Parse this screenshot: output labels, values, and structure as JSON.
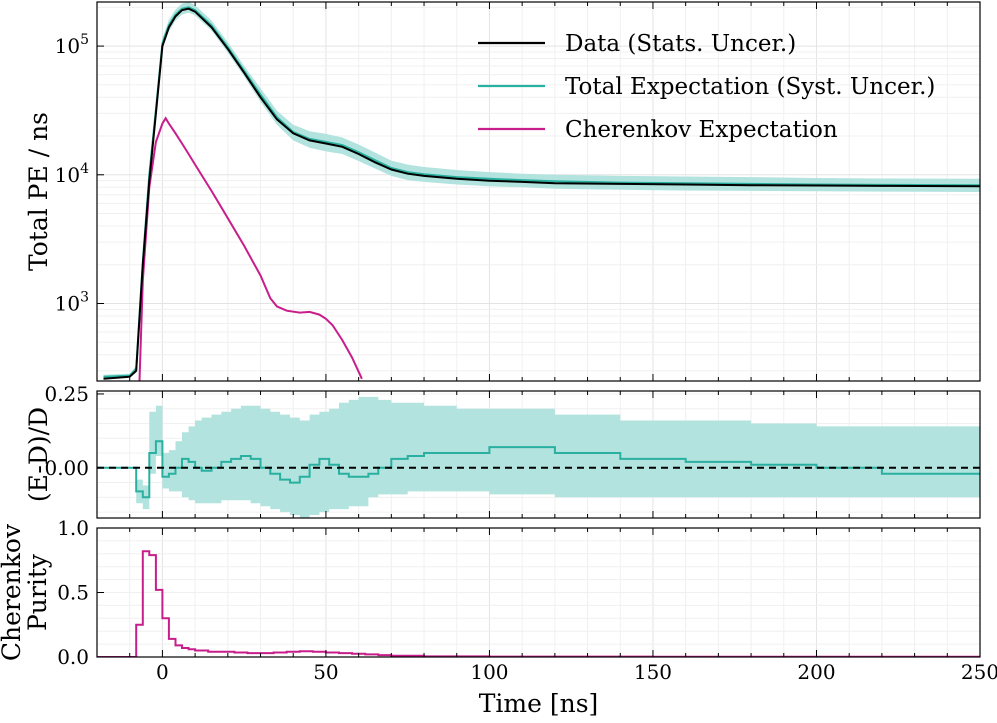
{
  "chart_data": [
    {
      "panel": "top",
      "type": "line",
      "yscale": "log",
      "xlim": [
        -20,
        250
      ],
      "ylim": [
        250,
        220000
      ],
      "ylabel": "Total PE / ns",
      "yticks": [
        {
          "value": 1000,
          "label": "10^3"
        },
        {
          "value": 10000,
          "label": "10^4"
        },
        {
          "value": 100000,
          "label": "10^5"
        }
      ],
      "series": [
        {
          "name": "Data (Stats. Uncer.)",
          "color": "#000000",
          "x": [
            -18,
            -10,
            -8,
            -6,
            -4,
            -2,
            0,
            2,
            4,
            6,
            8,
            10,
            15,
            20,
            25,
            30,
            35,
            40,
            45,
            50,
            55,
            60,
            65,
            70,
            75,
            80,
            90,
            100,
            110,
            120,
            140,
            160,
            180,
            200,
            220,
            250
          ],
          "y": [
            260,
            270,
            300,
            2000,
            9000,
            30000,
            100000,
            140000,
            170000,
            190000,
            195000,
            185000,
            140000,
            95000,
            62000,
            40000,
            27000,
            21000,
            18500,
            17500,
            16500,
            14500,
            12500,
            11000,
            10200,
            9800,
            9300,
            9000,
            8800,
            8600,
            8500,
            8400,
            8300,
            8250,
            8200,
            8150
          ]
        },
        {
          "name": "Total Expectation (Syst. Uncer.)",
          "color": "#2ab0a0",
          "band_color": "#b2e3de",
          "x": [
            -18,
            -10,
            -8,
            -6,
            -4,
            -2,
            0,
            2,
            4,
            6,
            8,
            10,
            15,
            20,
            25,
            30,
            35,
            40,
            45,
            50,
            55,
            60,
            65,
            70,
            75,
            80,
            90,
            100,
            110,
            120,
            140,
            160,
            180,
            200,
            220,
            250
          ],
          "y": [
            270,
            275,
            310,
            2100,
            10000,
            32000,
            105000,
            145000,
            175000,
            195000,
            200000,
            190000,
            145000,
            98000,
            64000,
            42000,
            28000,
            21500,
            19000,
            18000,
            17000,
            15000,
            13000,
            11300,
            10500,
            10100,
            9600,
            9300,
            9100,
            8900,
            8700,
            8600,
            8500,
            8400,
            8350,
            8300
          ],
          "band_lower": [
            260,
            265,
            290,
            1900,
            9000,
            29000,
            95000,
            130000,
            158000,
            176000,
            182000,
            173000,
            132000,
            89000,
            58000,
            37000,
            24500,
            18500,
            16200,
            15200,
            14500,
            12800,
            11200,
            9800,
            9100,
            8800,
            8400,
            8150,
            8000,
            7800,
            7650,
            7550,
            7500,
            7450,
            7400,
            7350
          ],
          "band_upper": [
            280,
            285,
            330,
            2300,
            11000,
            35000,
            115000,
            160000,
            192000,
            214000,
            219000,
            208000,
            158000,
            107000,
            70000,
            47000,
            31500,
            24500,
            21800,
            20800,
            19500,
            17200,
            14900,
            12900,
            12000,
            11500,
            10900,
            10500,
            10200,
            10000,
            9800,
            9700,
            9600,
            9450,
            9350,
            9300
          ]
        },
        {
          "name": "Cherenkov Expectation",
          "color": "#c81e8c",
          "x": [
            -7,
            -6,
            -4,
            -2,
            0,
            1,
            2,
            4,
            6,
            8,
            10,
            15,
            20,
            25,
            30,
            33,
            35,
            38,
            42,
            45,
            48,
            50,
            52,
            55,
            58,
            61
          ],
          "y": [
            250,
            1500,
            8000,
            18000,
            25000,
            27500,
            25000,
            21000,
            17500,
            14500,
            12000,
            7500,
            4600,
            2800,
            1650,
            1100,
            950,
            880,
            850,
            860,
            820,
            760,
            680,
            520,
            380,
            260
          ]
        }
      ]
    },
    {
      "panel": "middle",
      "type": "step",
      "xlim": [
        -20,
        250
      ],
      "ylim": [
        -0.17,
        0.26
      ],
      "ylabel": "(E-D)/D",
      "yticks": [
        {
          "value": -0.25,
          "label": ""
        },
        {
          "value": 0.0,
          "label": "0.00"
        },
        {
          "value": 0.25,
          "label": "0.25"
        }
      ],
      "reference_line": 0.0,
      "edges": [
        -20,
        -10,
        -8,
        -6,
        -4,
        -2,
        0,
        2,
        4,
        6,
        8,
        10,
        12,
        15,
        18,
        21,
        24,
        27,
        30,
        33,
        36,
        39,
        42,
        45,
        48,
        51,
        54,
        57,
        60,
        63,
        66,
        70,
        75,
        80,
        90,
        100,
        120,
        140,
        160,
        180,
        200,
        220,
        250
      ],
      "values": [
        0.0,
        0.0,
        -0.08,
        -0.1,
        0.05,
        0.09,
        -0.03,
        -0.02,
        0.0,
        0.03,
        0.02,
        0.0,
        -0.01,
        0.0,
        0.02,
        0.03,
        0.04,
        0.03,
        0.0,
        -0.02,
        -0.04,
        -0.05,
        -0.03,
        0.01,
        0.03,
        0.01,
        -0.02,
        -0.03,
        -0.03,
        -0.02,
        0.0,
        0.03,
        0.04,
        0.05,
        0.05,
        0.07,
        0.05,
        0.03,
        0.02,
        0.01,
        0.0,
        -0.02
      ],
      "band_lower": [
        0.0,
        0.0,
        -0.12,
        -0.14,
        -0.02,
        0.04,
        -0.07,
        -0.08,
        -0.08,
        -0.1,
        -0.11,
        -0.12,
        -0.12,
        -0.12,
        -0.11,
        -0.11,
        -0.11,
        -0.12,
        -0.13,
        -0.14,
        -0.15,
        -0.16,
        -0.17,
        -0.16,
        -0.15,
        -0.14,
        -0.14,
        -0.13,
        -0.13,
        -0.1,
        -0.09,
        -0.09,
        -0.08,
        -0.08,
        -0.08,
        -0.09,
        -0.1,
        -0.1,
        -0.1,
        -0.1,
        -0.1,
        -0.1
      ],
      "band_upper": [
        0.0,
        0.0,
        -0.04,
        -0.06,
        0.19,
        0.21,
        0.05,
        0.06,
        0.09,
        0.12,
        0.14,
        0.16,
        0.17,
        0.18,
        0.19,
        0.2,
        0.21,
        0.21,
        0.2,
        0.19,
        0.18,
        0.17,
        0.16,
        0.18,
        0.19,
        0.2,
        0.22,
        0.23,
        0.24,
        0.24,
        0.23,
        0.22,
        0.22,
        0.21,
        0.2,
        0.2,
        0.18,
        0.16,
        0.16,
        0.15,
        0.14,
        0.14
      ]
    },
    {
      "panel": "bottom",
      "type": "step",
      "xlim": [
        -20,
        250
      ],
      "ylim": [
        0,
        1
      ],
      "xlabel": "Time [ns]",
      "ylabel": "Cherenkov Purity",
      "yticks": [
        {
          "value": 0.0,
          "label": "0.0"
        },
        {
          "value": 0.5,
          "label": "0.5"
        },
        {
          "value": 1.0,
          "label": "1.0"
        }
      ],
      "xticks": [
        {
          "value": 0,
          "label": "0"
        },
        {
          "value": 50,
          "label": "50"
        },
        {
          "value": 100,
          "label": "100"
        },
        {
          "value": 150,
          "label": "150"
        },
        {
          "value": 200,
          "label": "200"
        },
        {
          "value": 250,
          "label": "250"
        }
      ],
      "edges": [
        -20,
        -8,
        -6,
        -4,
        -2,
        0,
        2,
        4,
        6,
        8,
        10,
        14,
        18,
        22,
        26,
        30,
        34,
        38,
        42,
        46,
        50,
        54,
        58,
        62,
        66,
        70,
        80,
        100,
        150,
        250
      ],
      "values": [
        0.0,
        0.25,
        0.82,
        0.79,
        0.52,
        0.3,
        0.14,
        0.09,
        0.07,
        0.06,
        0.05,
        0.04,
        0.04,
        0.035,
        0.03,
        0.03,
        0.035,
        0.04,
        0.045,
        0.04,
        0.035,
        0.03,
        0.025,
        0.02,
        0.015,
        0.01,
        0.005,
        0.003,
        0.002
      ],
      "color": "#c81e8c"
    }
  ],
  "legend": {
    "entries": [
      {
        "label": "Data (Stats. Uncer.)",
        "color": "#000000"
      },
      {
        "label": "Total Expectation (Syst. Uncer.)",
        "color": "#2ab0a0"
      },
      {
        "label": "Cherenkov Expectation",
        "color": "#c81e8c"
      }
    ]
  }
}
